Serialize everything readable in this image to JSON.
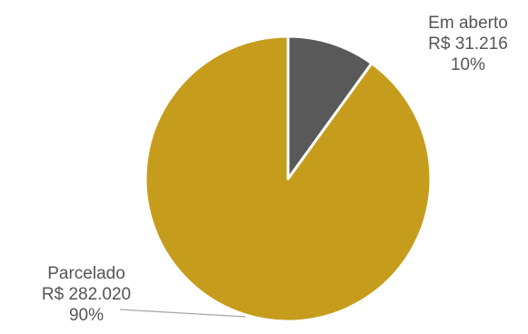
{
  "chart_data": {
    "type": "pie",
    "title": "",
    "slices": [
      {
        "label": "Em aberto",
        "amount": "R$ 31.216",
        "percent_label": "10%",
        "value": 31216,
        "color": "#595959"
      },
      {
        "label": "Parcelado",
        "amount": "R$ 282.020",
        "percent_label": "90%",
        "value": 282020,
        "color": "#C69C1D"
      }
    ],
    "start_angle_deg": 0,
    "direction": "clockwise",
    "legend": "none"
  }
}
